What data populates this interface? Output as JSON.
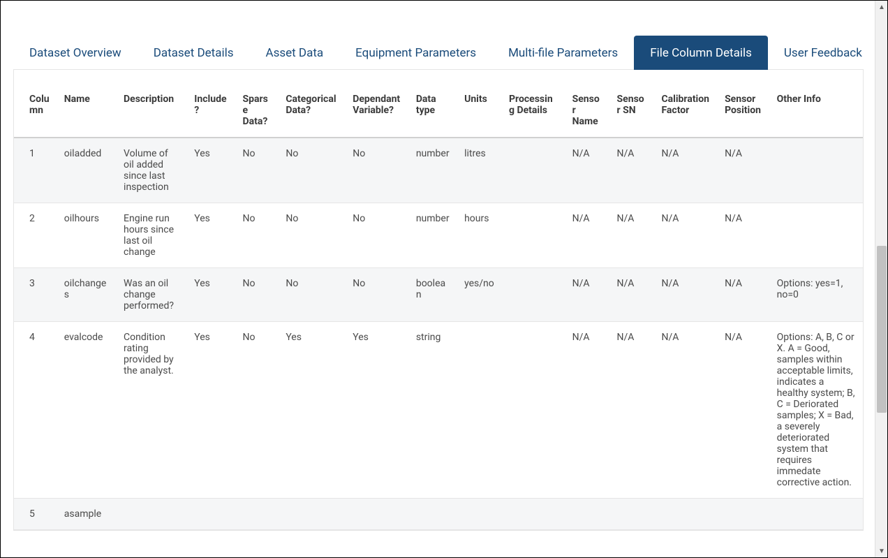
{
  "colors": {
    "tab_text": "#1a4b7a",
    "tab_active_bg": "#1a4b7a",
    "tab_active_text": "#ffffff",
    "row_alt_bg": "#f5f6f7",
    "border": "#e5e5e5",
    "header_border": "#d0d0d0",
    "text": "#4a4a4a"
  },
  "tabs": [
    {
      "label": "Dataset Overview",
      "active": false
    },
    {
      "label": "Dataset Details",
      "active": false
    },
    {
      "label": "Asset Data",
      "active": false
    },
    {
      "label": "Equipment Parameters",
      "active": false
    },
    {
      "label": "Multi-file Parameters",
      "active": false
    },
    {
      "label": "File Column Details",
      "active": true
    },
    {
      "label": "User Feedback",
      "active": false
    }
  ],
  "table": {
    "columns": [
      "Column",
      "Name",
      "Description",
      "Include?",
      "Sparse Data?",
      "Categorical Data?",
      "Dependant Variable?",
      "Data type",
      "Units",
      "Processing Details",
      "Sensor Name",
      "Sensor SN",
      "Calibration Factor",
      "Sensor Position",
      "Other Info"
    ],
    "rows": [
      {
        "column": "1",
        "name": "oiladded",
        "description": "Volume of oil added since last inspection",
        "include": "Yes",
        "sparse": "No",
        "categorical": "No",
        "dependant": "No",
        "dtype": "number",
        "units": "litres",
        "processing": "",
        "sensor_name": "N/A",
        "sensor_sn": "N/A",
        "calibration": "N/A",
        "sensor_position": "N/A",
        "other": ""
      },
      {
        "column": "2",
        "name": "oilhours",
        "description": "Engine run hours since last oil change",
        "include": "Yes",
        "sparse": "No",
        "categorical": "No",
        "dependant": "No",
        "dtype": "number",
        "units": "hours",
        "processing": "",
        "sensor_name": "N/A",
        "sensor_sn": "N/A",
        "calibration": "N/A",
        "sensor_position": "N/A",
        "other": ""
      },
      {
        "column": "3",
        "name": "oilchanges",
        "description": "Was an oil change performed?",
        "include": "Yes",
        "sparse": "No",
        "categorical": "No",
        "dependant": "No",
        "dtype": "boolean",
        "units": "yes/no",
        "processing": "",
        "sensor_name": "N/A",
        "sensor_sn": "N/A",
        "calibration": "N/A",
        "sensor_position": "N/A",
        "other": "Options: yes=1, no=0"
      },
      {
        "column": "4",
        "name": "evalcode",
        "description": "Condition rating provided by the analyst.",
        "include": "Yes",
        "sparse": "No",
        "categorical": "Yes",
        "dependant": "Yes",
        "dtype": "string",
        "units": "",
        "processing": "",
        "sensor_name": "N/A",
        "sensor_sn": "N/A",
        "calibration": "N/A",
        "sensor_position": "N/A",
        "other": "Options: A, B, C or X. A = Good, samples within acceptable limits, indicates a healthy system; B, C = Deriorated samples; X = Bad, a severely deteriorated system that requires immedate corrective action."
      },
      {
        "column": "5",
        "name": "asample",
        "description": "",
        "include": "",
        "sparse": "",
        "categorical": "",
        "dependant": "",
        "dtype": "",
        "units": "",
        "processing": "",
        "sensor_name": "",
        "sensor_sn": "",
        "calibration": "",
        "sensor_position": "",
        "other": ""
      }
    ]
  },
  "scrollbar": {
    "thumb_top_pct": 44,
    "thumb_height_pct": 30
  }
}
